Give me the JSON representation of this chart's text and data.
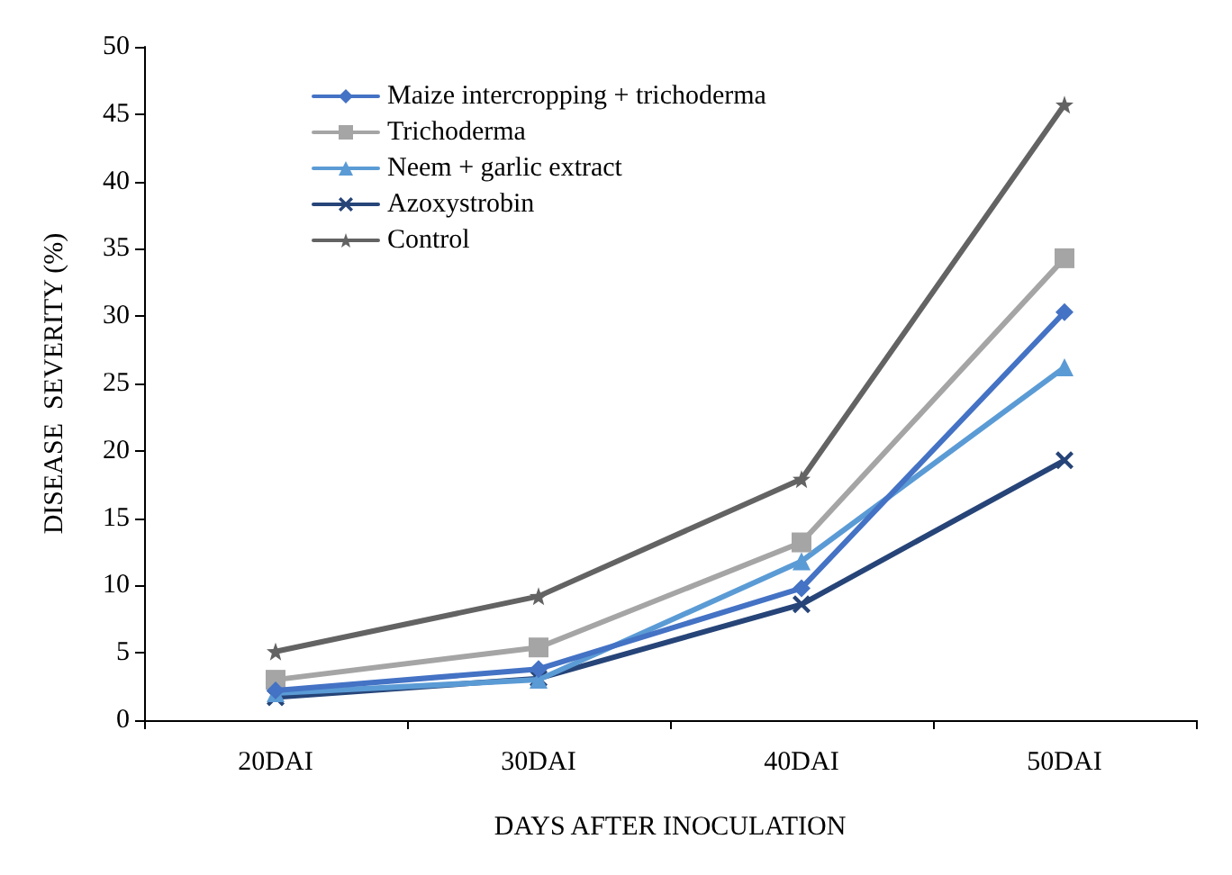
{
  "chart_data": {
    "type": "line",
    "xlabel": "DAYS AFTER INOCULATION",
    "ylabel": "DISEASE  SEVERITY (%)",
    "categories": [
      "20DAI",
      "30DAI",
      "40DAI",
      "50DAI"
    ],
    "series": [
      {
        "name": "Maize intercropping + trichoderma",
        "color": "#4472c4",
        "marker": "diamond",
        "values": [
          2.2,
          3.8,
          9.8,
          30.3
        ]
      },
      {
        "name": "Trichoderma",
        "color": "#a5a5a5",
        "marker": "square",
        "values": [
          3.0,
          5.4,
          13.2,
          34.3
        ]
      },
      {
        "name": "Neem + garlic extract",
        "color": "#5b9bd5",
        "marker": "triangle",
        "values": [
          2.0,
          3.0,
          11.8,
          26.2
        ]
      },
      {
        "name": "Azoxystrobin",
        "color": "#264478",
        "marker": "cross",
        "values": [
          1.7,
          3.1,
          8.6,
          19.3
        ]
      },
      {
        "name": "Control",
        "color": "#636363",
        "marker": "star",
        "values": [
          5.1,
          9.2,
          17.9,
          45.7
        ]
      }
    ],
    "ylim": [
      0,
      50
    ],
    "yticks": [
      0,
      5,
      10,
      15,
      20,
      25,
      30,
      35,
      40,
      45,
      50
    ],
    "grid": false,
    "legend": "top left"
  }
}
